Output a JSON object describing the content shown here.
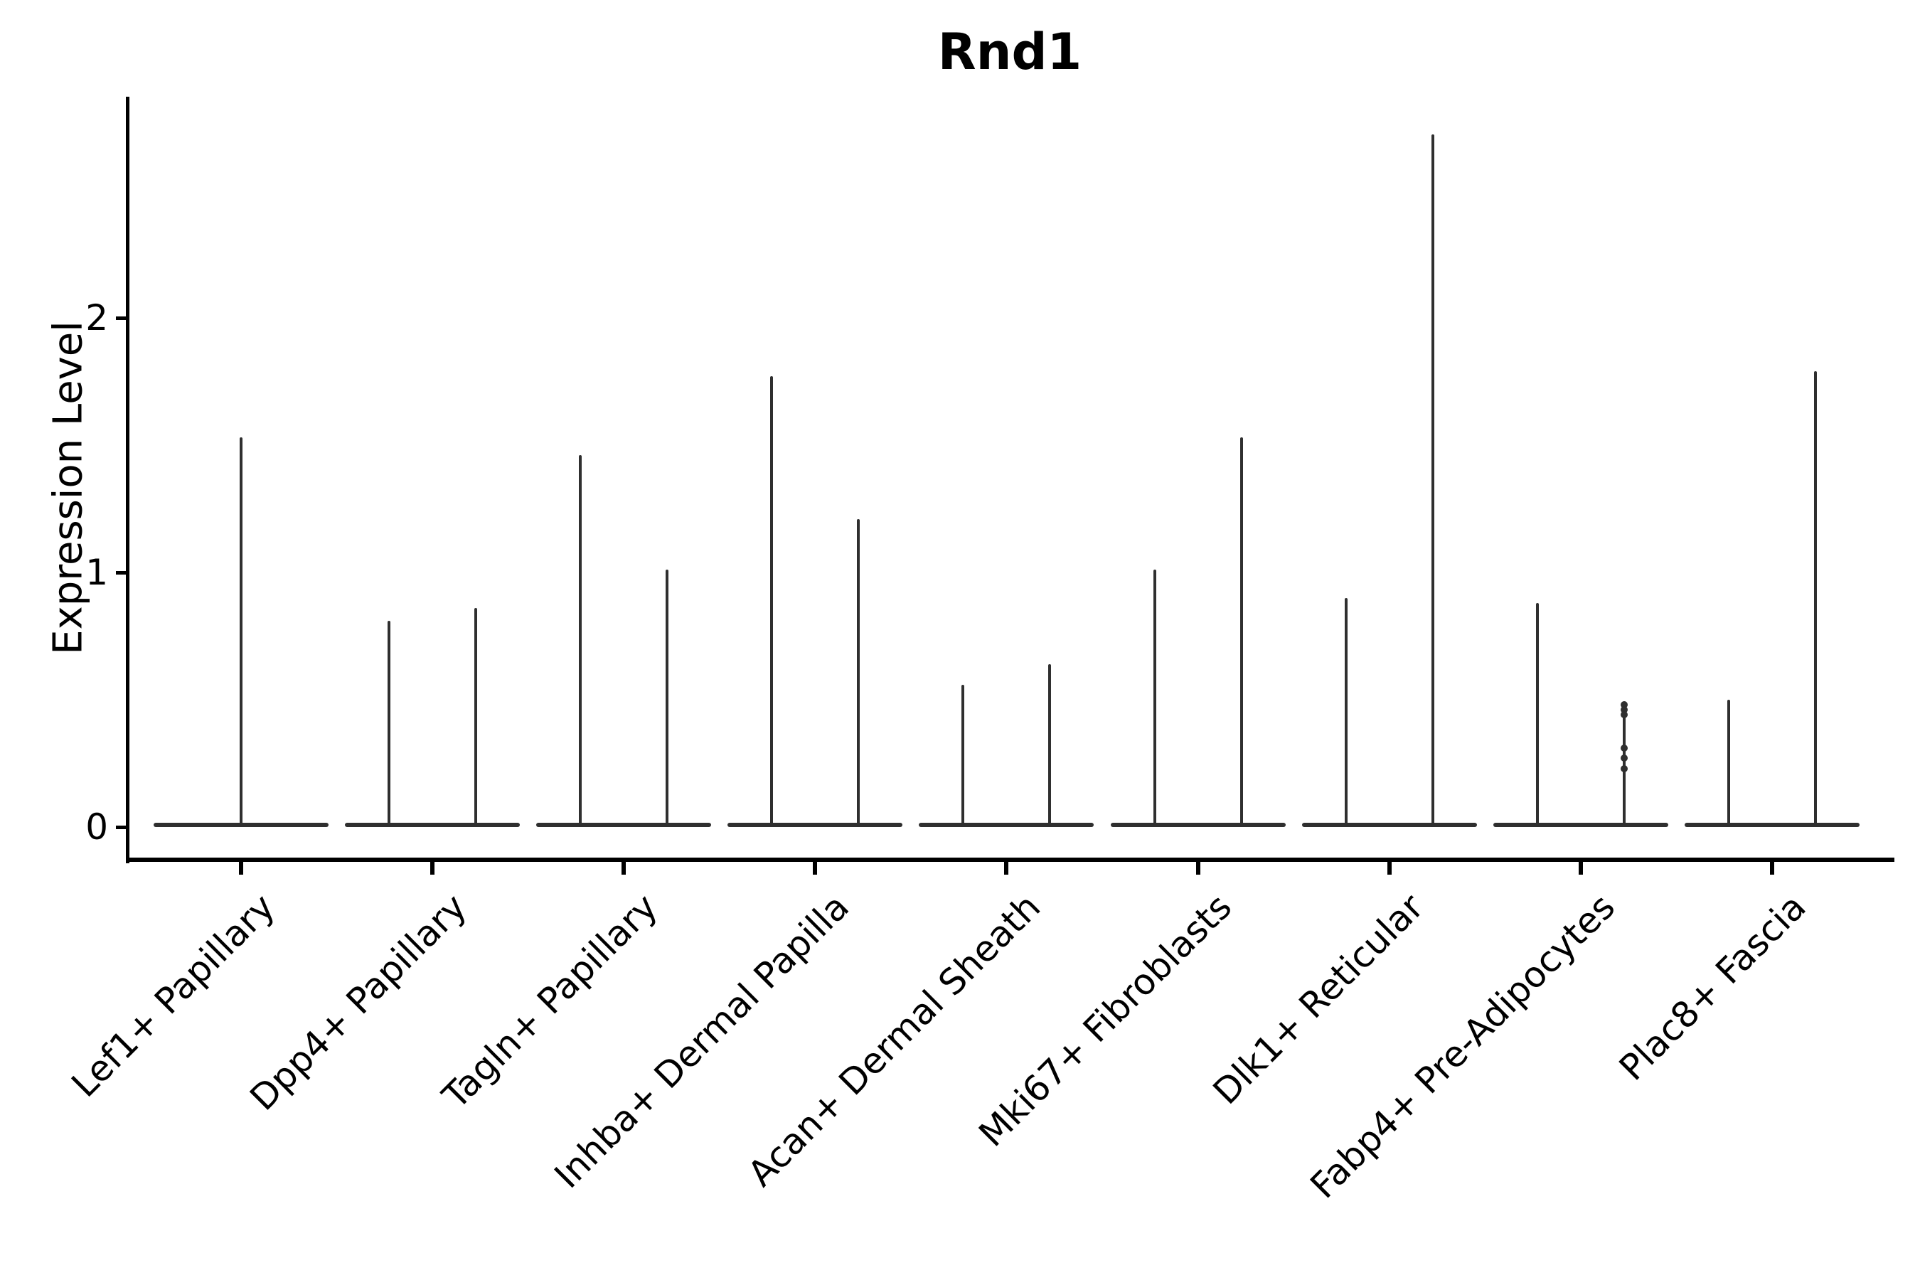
{
  "chart_data": {
    "type": "violin",
    "title": "Rnd1",
    "ylabel": "Expression Level",
    "xlabel": "",
    "yticks": [
      0,
      1,
      2
    ],
    "ylim": [
      -0.13,
      2.86
    ],
    "grid": false,
    "legend": "none",
    "baseline_value": 0,
    "groups": [
      {
        "label": "Lef1+ Papillary",
        "violins": [
          {
            "max": 1.53
          }
        ]
      },
      {
        "label": "Dpp4+ Papillary",
        "violins": [
          {
            "max": 0.81
          },
          {
            "max": 0.86
          }
        ]
      },
      {
        "label": "Tagln+ Papillary",
        "violins": [
          {
            "max": 1.46
          },
          {
            "max": 1.01
          }
        ]
      },
      {
        "label": "Inhba+ Dermal Papilla",
        "violins": [
          {
            "max": 1.77
          },
          {
            "max": 1.21
          }
        ]
      },
      {
        "label": "Acan+ Dermal Sheath",
        "violins": [
          {
            "max": 0.56
          },
          {
            "max": 0.64
          }
        ]
      },
      {
        "label": "Mki67+ Fibroblasts",
        "violins": [
          {
            "max": 1.01
          },
          {
            "max": 1.53
          }
        ]
      },
      {
        "label": "Dlk1+ Reticular",
        "violins": [
          {
            "max": 0.9
          },
          {
            "max": 2.72
          }
        ]
      },
      {
        "label": "Fabp4+ Pre-Adipocytes",
        "violins": [
          {
            "max": 0.88
          },
          {
            "max": 0.49,
            "points": [
              0.48,
              0.46,
              0.44,
              0.31,
              0.27,
              0.23
            ]
          }
        ]
      },
      {
        "label": "Plac8+ Fascia",
        "violins": [
          {
            "max": 0.5
          },
          {
            "max": 1.79
          }
        ]
      }
    ],
    "colors": {
      "violin": "#2f2f2f",
      "axis": "#000000",
      "text": "#000000",
      "background": "#ffffff"
    }
  }
}
